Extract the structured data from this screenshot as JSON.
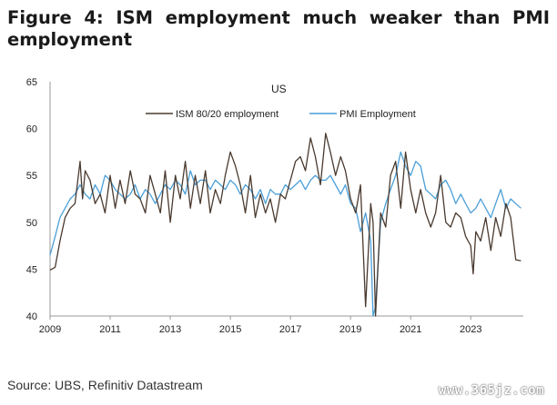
{
  "title": "Figure 4: ISM employment much weaker than PMI employment",
  "source": "Source: UBS, Refinitiv Datastream",
  "watermark": "www.365jz.com",
  "chart_data": {
    "type": "line",
    "region_label": "US",
    "title": "",
    "xlabel": "",
    "ylabel": "",
    "xlim": [
      2009.0,
      2024.75
    ],
    "ylim": [
      40,
      65
    ],
    "x_ticks": [
      2009,
      2011,
      2013,
      2015,
      2017,
      2019,
      2021,
      2023
    ],
    "y_ticks": [
      40,
      45,
      50,
      55,
      60,
      65
    ],
    "grid": false,
    "legend_position": "top",
    "series": [
      {
        "name": "ISM 80/20 employment",
        "color": "#4a3a2f",
        "x": [
          2009.0,
          2009.17,
          2009.33,
          2009.5,
          2009.67,
          2009.83,
          2010.0,
          2010.08,
          2010.17,
          2010.33,
          2010.5,
          2010.67,
          2010.83,
          2011.0,
          2011.17,
          2011.33,
          2011.5,
          2011.67,
          2011.83,
          2012.0,
          2012.17,
          2012.33,
          2012.5,
          2012.67,
          2012.83,
          2013.0,
          2013.17,
          2013.33,
          2013.5,
          2013.67,
          2013.83,
          2014.0,
          2014.17,
          2014.33,
          2014.5,
          2014.67,
          2014.83,
          2015.0,
          2015.17,
          2015.33,
          2015.5,
          2015.67,
          2015.83,
          2016.0,
          2016.17,
          2016.33,
          2016.5,
          2016.67,
          2016.83,
          2017.0,
          2017.17,
          2017.33,
          2017.5,
          2017.67,
          2017.83,
          2018.0,
          2018.17,
          2018.33,
          2018.5,
          2018.67,
          2018.83,
          2019.0,
          2019.17,
          2019.33,
          2019.5,
          2019.67,
          2019.75,
          2019.83,
          2020.0,
          2020.17,
          2020.33,
          2020.5,
          2020.67,
          2020.83,
          2021.0,
          2021.17,
          2021.33,
          2021.5,
          2021.67,
          2021.83,
          2022.0,
          2022.17,
          2022.33,
          2022.5,
          2022.67,
          2022.83,
          2023.0,
          2023.08,
          2023.17,
          2023.33,
          2023.5,
          2023.67,
          2023.83,
          2024.0,
          2024.17,
          2024.33,
          2024.5,
          2024.67
        ],
        "values": [
          44.9,
          45.2,
          48.0,
          50.5,
          51.5,
          52.0,
          56.5,
          52.5,
          55.5,
          54.5,
          52.0,
          53.0,
          51.0,
          55.0,
          51.5,
          54.5,
          52.0,
          55.5,
          53.0,
          52.5,
          51.0,
          55.0,
          53.0,
          51.0,
          55.5,
          50.0,
          55.0,
          52.5,
          56.5,
          51.5,
          55.0,
          52.0,
          55.5,
          51.0,
          53.5,
          52.0,
          55.0,
          57.5,
          56.0,
          54.0,
          51.0,
          55.0,
          50.5,
          53.0,
          51.0,
          52.5,
          50.0,
          53.0,
          52.5,
          54.5,
          56.5,
          57.0,
          55.5,
          59.0,
          57.0,
          54.0,
          59.5,
          57.5,
          55.0,
          57.0,
          55.5,
          52.5,
          51.0,
          54.0,
          41.0,
          52.0,
          50.0,
          40.0,
          51.0,
          49.5,
          55.0,
          56.5,
          51.5,
          57.5,
          53.5,
          51.0,
          53.5,
          51.0,
          49.5,
          51.0,
          55.0,
          50.0,
          49.5,
          51.0,
          50.5,
          48.5,
          47.5,
          44.5,
          49.0,
          48.0,
          50.5,
          47.0,
          50.5,
          48.5,
          52.0,
          50.5,
          46.0,
          45.9
        ]
      },
      {
        "name": "PMI Employment",
        "color": "#4a9fd8",
        "x": [
          2009.0,
          2009.17,
          2009.33,
          2009.5,
          2009.67,
          2009.83,
          2010.0,
          2010.17,
          2010.33,
          2010.5,
          2010.67,
          2010.83,
          2011.0,
          2011.17,
          2011.33,
          2011.5,
          2011.67,
          2011.83,
          2012.0,
          2012.17,
          2012.33,
          2012.5,
          2012.67,
          2012.83,
          2013.0,
          2013.17,
          2013.33,
          2013.5,
          2013.67,
          2013.83,
          2014.0,
          2014.17,
          2014.33,
          2014.5,
          2014.67,
          2014.83,
          2015.0,
          2015.17,
          2015.33,
          2015.5,
          2015.67,
          2015.83,
          2016.0,
          2016.17,
          2016.33,
          2016.5,
          2016.67,
          2016.83,
          2017.0,
          2017.17,
          2017.33,
          2017.5,
          2017.67,
          2017.83,
          2018.0,
          2018.17,
          2018.33,
          2018.5,
          2018.67,
          2018.83,
          2019.0,
          2019.17,
          2019.33,
          2019.5,
          2019.67,
          2019.75,
          2019.83,
          2020.0,
          2020.17,
          2020.33,
          2020.5,
          2020.67,
          2020.83,
          2021.0,
          2021.17,
          2021.33,
          2021.5,
          2021.67,
          2021.83,
          2022.0,
          2022.17,
          2022.33,
          2022.5,
          2022.67,
          2022.83,
          2023.0,
          2023.17,
          2023.33,
          2023.5,
          2023.67,
          2023.83,
          2024.0,
          2024.17,
          2024.33,
          2024.5,
          2024.67
        ],
        "values": [
          46.5,
          48.5,
          50.5,
          51.5,
          52.5,
          53.0,
          54.0,
          53.0,
          52.5,
          54.0,
          53.0,
          55.0,
          54.5,
          53.5,
          53.0,
          52.5,
          53.0,
          54.0,
          52.5,
          53.5,
          53.0,
          52.0,
          53.0,
          54.0,
          53.5,
          54.5,
          54.0,
          53.0,
          55.5,
          54.0,
          54.5,
          54.5,
          53.5,
          54.5,
          54.0,
          53.5,
          54.5,
          54.0,
          53.0,
          54.0,
          53.5,
          52.5,
          53.5,
          52.0,
          53.5,
          53.0,
          53.0,
          54.0,
          53.5,
          54.0,
          54.5,
          53.5,
          54.5,
          55.0,
          54.5,
          54.5,
          55.0,
          54.0,
          53.0,
          54.0,
          52.0,
          51.5,
          49.0,
          51.0,
          48.0,
          40.0,
          41.0,
          50.0,
          52.0,
          53.5,
          55.0,
          57.5,
          56.0,
          55.0,
          56.5,
          56.0,
          53.5,
          53.0,
          52.5,
          54.0,
          54.5,
          53.5,
          52.0,
          53.0,
          52.0,
          51.0,
          51.5,
          52.5,
          51.5,
          50.5,
          52.0,
          53.5,
          51.5,
          52.5,
          52.0,
          51.5
        ]
      }
    ]
  }
}
